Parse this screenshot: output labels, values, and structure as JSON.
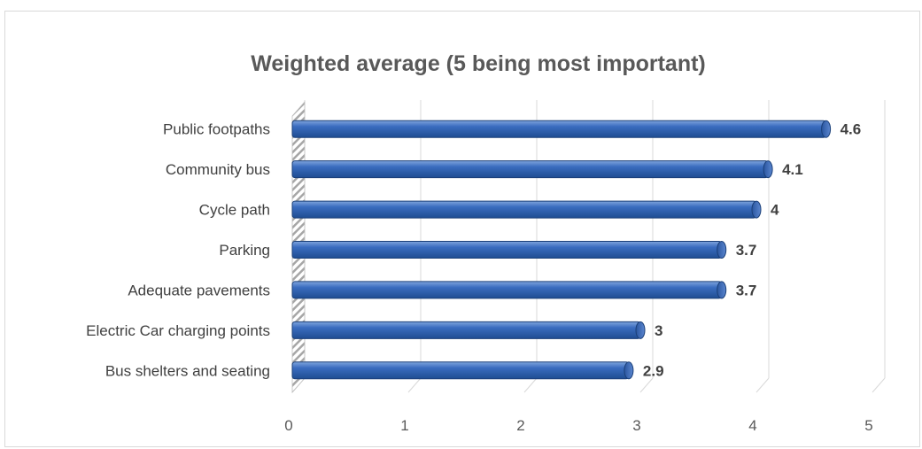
{
  "chart_data": {
    "type": "bar",
    "orientation": "horizontal",
    "title": "Weighted average (5 being most important)",
    "categories": [
      "Public footpaths",
      "Community bus",
      "Cycle path",
      "Parking",
      "Adequate pavements",
      "Electric Car charging points",
      "Bus shelters and seating"
    ],
    "values": [
      4.6,
      4.1,
      4,
      3.7,
      3.7,
      3,
      2.9
    ],
    "data_labels": [
      "4.6",
      "4.1",
      "4",
      "3.7",
      "3.7",
      "3",
      "2.9"
    ],
    "xlim": [
      0,
      5
    ],
    "x_ticks": [
      "0",
      "1",
      "2",
      "3",
      "4",
      "5"
    ],
    "grid": true,
    "style": "3d",
    "bar_color": "#2e5da8",
    "xlabel": "",
    "ylabel": ""
  }
}
